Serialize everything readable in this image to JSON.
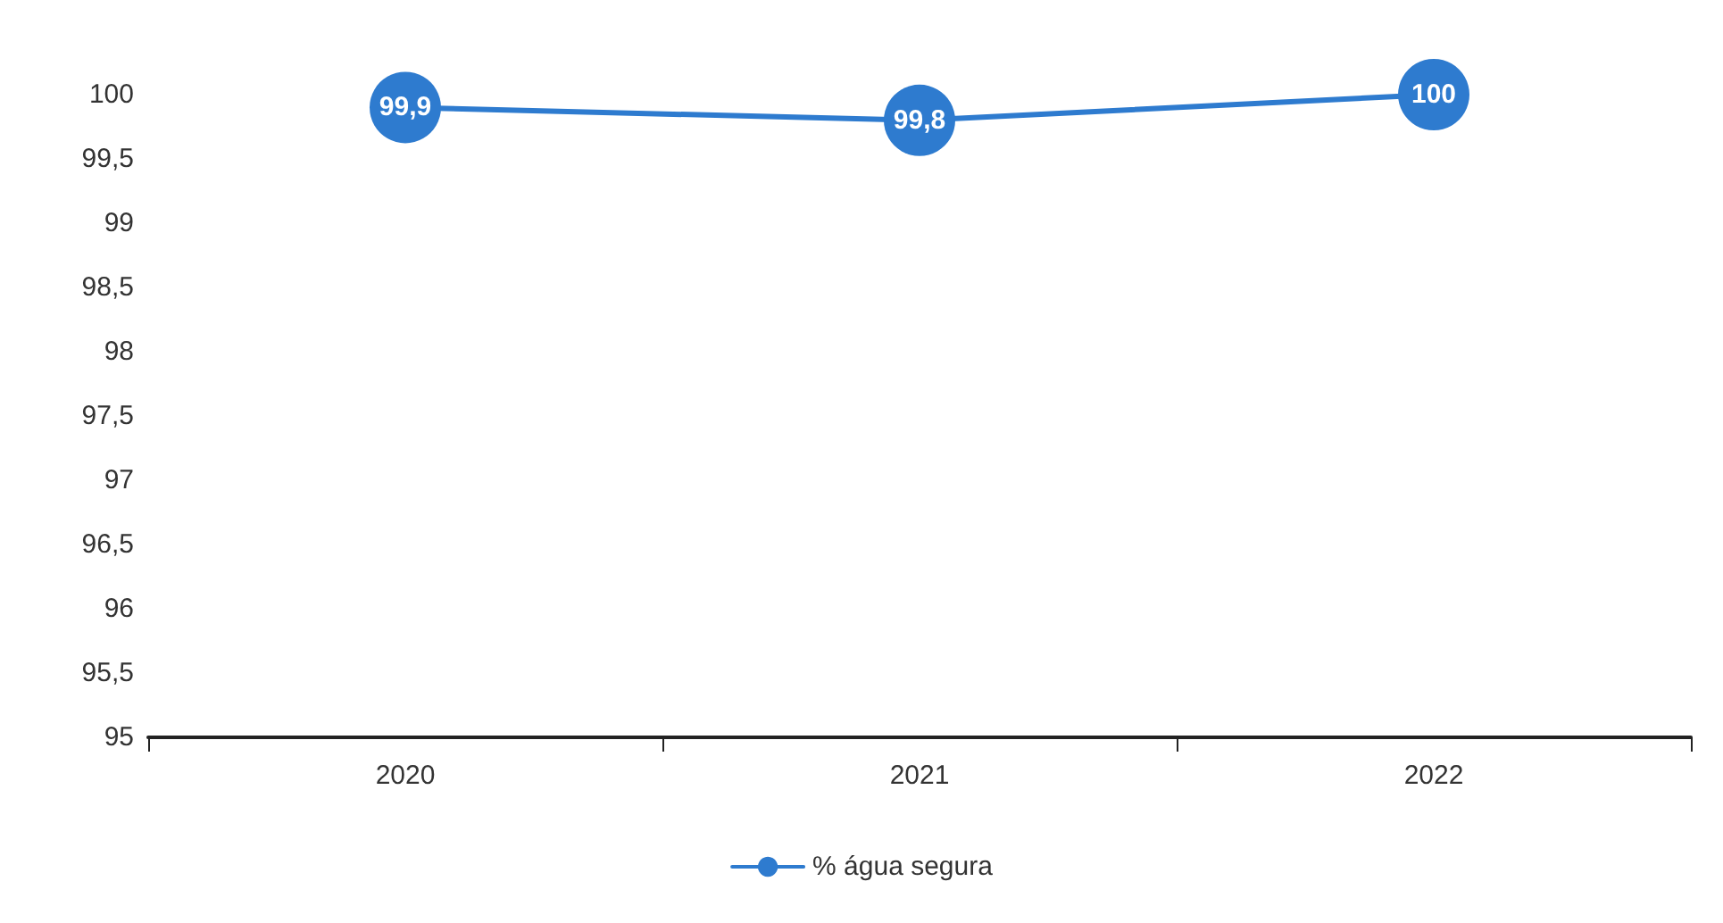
{
  "chart_data": {
    "type": "line",
    "categories": [
      "2020",
      "2021",
      "2022"
    ],
    "series": [
      {
        "name": "% água segura",
        "color": "#2e7bcf",
        "values": [
          99.9,
          99.8,
          100
        ],
        "value_labels": [
          "99,9",
          "99,8",
          "100"
        ]
      }
    ],
    "ylim": [
      95,
      100
    ],
    "yticks": [
      {
        "value": 95,
        "label": "95"
      },
      {
        "value": 95.5,
        "label": "95,5"
      },
      {
        "value": 96,
        "label": "96"
      },
      {
        "value": 96.5,
        "label": "96,5"
      },
      {
        "value": 97,
        "label": "97"
      },
      {
        "value": 97.5,
        "label": "97,5"
      },
      {
        "value": 98,
        "label": "98"
      },
      {
        "value": 98.5,
        "label": "98,5"
      },
      {
        "value": 99,
        "label": "99"
      },
      {
        "value": 99.5,
        "label": "99,5"
      },
      {
        "value": 100,
        "label": "100"
      }
    ],
    "grid": false,
    "legend": "bottom",
    "marker": "circle",
    "line_style": "solid"
  }
}
